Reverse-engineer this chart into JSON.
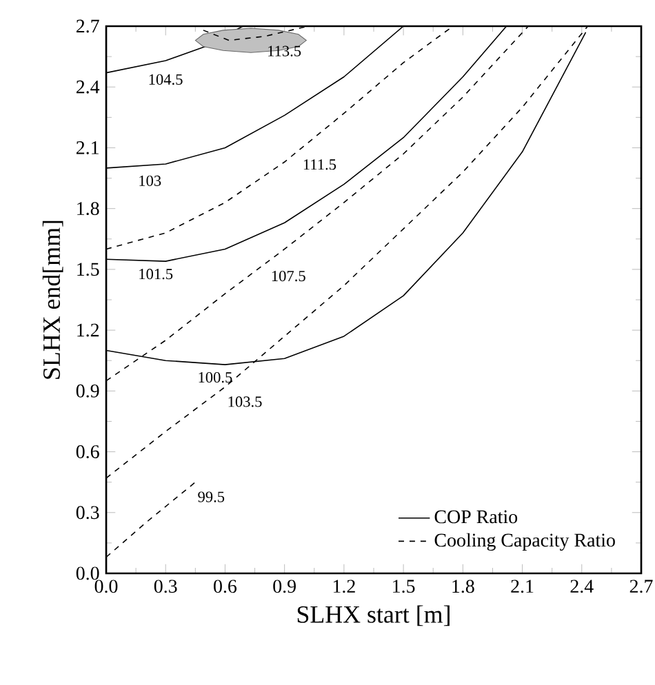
{
  "chart_data": {
    "type": "line",
    "xlabel": "SLHX start [m]",
    "ylabel": "SLHX end[mm]",
    "xlim": [
      0,
      2.7
    ],
    "ylim": [
      0,
      2.7
    ],
    "xticks": [
      {
        "value": 0,
        "label": "0.0"
      },
      0.3,
      0.6,
      0.9,
      1.2,
      1.5,
      1.8,
      2.1,
      2.4,
      2.7
    ],
    "yticks": [
      {
        "value": 0,
        "label": "0.0"
      },
      0.3,
      0.6,
      0.9,
      1.2,
      1.5,
      1.8,
      2.1,
      2.4,
      2.7
    ],
    "legend": "bottom right",
    "grid": false,
    "series": [
      {
        "name": "COP Ratio",
        "color": "#000000",
        "line_style": "solid",
        "x": [
          0,
          0.3,
          0.6,
          0.9,
          1.2,
          1.5,
          1.8,
          2.1,
          2.42
        ],
        "values": [
          1.1,
          1.05,
          1.03,
          1.06,
          1.17,
          1.37,
          1.68,
          2.08,
          2.67
        ]
      },
      {
        "name": "Cooling Capacity Ratio",
        "color": "#000000",
        "line_style": "dashed",
        "x": [
          0,
          0.3,
          0.6,
          0.9,
          1.2,
          1.5,
          1.8,
          2.1,
          2.43
        ],
        "values": [
          0.47,
          0.7,
          0.92,
          1.17,
          1.42,
          1.7,
          1.98,
          2.3,
          2.7
        ]
      },
      {
        "color": "#000000",
        "line_style": "solid",
        "x": [
          0,
          0.3,
          0.5,
          0.69
        ],
        "values": [
          2.47,
          2.53,
          2.6,
          2.7
        ]
      },
      {
        "color": "#000000",
        "line_style": "solid",
        "x": [
          0,
          0.3,
          0.6,
          0.9,
          1.2,
          1.5
        ],
        "values": [
          2.0,
          2.02,
          2.1,
          2.26,
          2.45,
          2.7
        ]
      },
      {
        "color": "#000000",
        "line_style": "solid",
        "x": [
          0,
          0.3,
          0.6,
          0.9,
          1.2,
          1.5,
          1.8,
          2.02
        ],
        "values": [
          1.55,
          1.54,
          1.6,
          1.73,
          1.92,
          2.15,
          2.45,
          2.7
        ]
      },
      {
        "color": "#000000",
        "line_style": "dashed",
        "x": [
          0,
          0.3,
          0.6,
          0.9,
          1.2,
          1.5,
          1.75
        ],
        "values": [
          1.6,
          1.68,
          1.83,
          2.03,
          2.27,
          2.52,
          2.7
        ]
      },
      {
        "color": "#000000",
        "line_style": "dashed",
        "x": [
          0,
          0.3,
          0.6,
          0.9,
          1.2,
          1.5,
          1.8,
          2.13
        ],
        "values": [
          0.95,
          1.15,
          1.38,
          1.6,
          1.83,
          2.07,
          2.35,
          2.7
        ]
      },
      {
        "color": "#000000",
        "line_style": "dashed",
        "x": [
          0,
          0.2,
          0.45
        ],
        "values": [
          0.08,
          0.25,
          0.45
        ]
      },
      {
        "type": "area",
        "color": "#c0c0c0",
        "x": [
          0.45,
          0.49,
          0.59,
          0.73,
          0.87,
          0.97,
          1.01,
          0.97,
          0.87,
          0.73,
          0.59,
          0.49,
          0.45
        ],
        "values": [
          2.63,
          2.66,
          2.68,
          2.69,
          2.68,
          2.66,
          2.63,
          2.6,
          2.58,
          2.57,
          2.58,
          2.6,
          2.63
        ]
      },
      {
        "color": "#000000",
        "line_style": "dashed",
        "x": [
          0.49,
          0.62,
          0.8,
          1.02
        ],
        "values": [
          2.68,
          2.63,
          2.65,
          2.7
        ]
      }
    ],
    "annotations": [
      {
        "text": "104.5",
        "x": 0.2,
        "y": 2.51
      },
      {
        "text": "103",
        "x": 0.15,
        "y": 2.01
      },
      {
        "text": "111.5",
        "x": 0.98,
        "y": 2.09
      },
      {
        "text": "101.5",
        "x": 0.15,
        "y": 1.55
      },
      {
        "text": "107.5",
        "x": 0.82,
        "y": 1.54
      },
      {
        "text": "100.5",
        "x": 0.45,
        "y": 1.04
      },
      {
        "text": "103.5",
        "x": 0.6,
        "y": 0.92
      },
      {
        "text": "99.5",
        "x": 0.45,
        "y": 0.45
      },
      {
        "text": "113.5",
        "x": 0.8,
        "y": 2.65
      }
    ]
  }
}
